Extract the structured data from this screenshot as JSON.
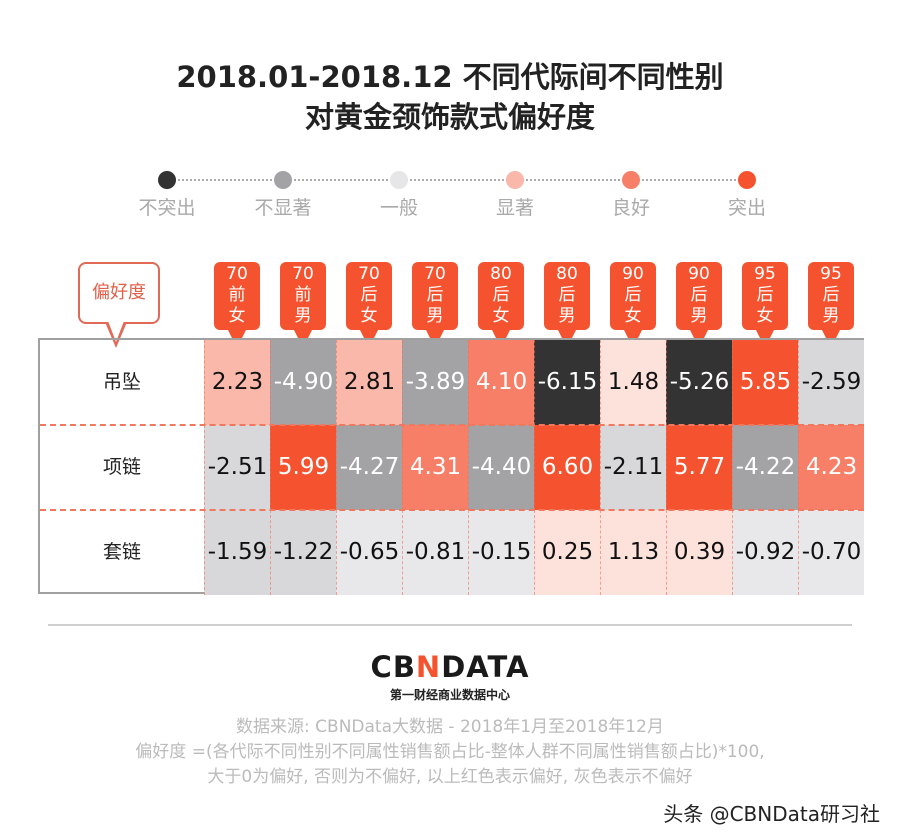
{
  "title_line1": "2018.01-2018.12 不同代际间不同性别",
  "title_line2": "对黄金颈饰款式偏好度",
  "legend": [
    {
      "label": "不突出",
      "color": "#333333"
    },
    {
      "label": "不显著",
      "color": "#a3a3a5"
    },
    {
      "label": "一般",
      "color": "#e6e6e8"
    },
    {
      "label": "显著",
      "color": "#f9b8aa"
    },
    {
      "label": "良好",
      "color": "#f77f68"
    },
    {
      "label": "突出",
      "color": "#f5532f"
    }
  ],
  "chart_data": {
    "type": "heatmap",
    "corner_label": "偏好度",
    "columns": [
      [
        "70",
        "前",
        "女"
      ],
      [
        "70",
        "前",
        "男"
      ],
      [
        "70",
        "后",
        "女"
      ],
      [
        "70",
        "后",
        "男"
      ],
      [
        "80",
        "后",
        "女"
      ],
      [
        "80",
        "后",
        "男"
      ],
      [
        "90",
        "后",
        "女"
      ],
      [
        "90",
        "后",
        "男"
      ],
      [
        "95",
        "后",
        "女"
      ],
      [
        "95",
        "后",
        "男"
      ]
    ],
    "rows": [
      {
        "label": "吊坠",
        "values": [
          "2.23",
          "-4.90",
          "2.81",
          "-3.89",
          "4.10",
          "-6.15",
          "1.48",
          "-5.26",
          "5.85",
          "-2.59"
        ]
      },
      {
        "label": "项链",
        "values": [
          "-2.51",
          "5.99",
          "-4.27",
          "4.31",
          "-4.40",
          "6.60",
          "-2.11",
          "5.77",
          "-4.22",
          "4.23"
        ]
      },
      {
        "label": "套链",
        "values": [
          "-1.59",
          "-1.22",
          "-0.65",
          "-0.81",
          "-0.15",
          "0.25",
          "1.13",
          "0.39",
          "-0.92",
          "-0.70"
        ]
      }
    ]
  },
  "footer": {
    "logo_pre": "CB",
    "logo_n": "N",
    "logo_post": "DATA",
    "logo_sub": "第一财经商业数据中心",
    "source": "数据来源: CBNData大数据 - 2018年1月至2018年12月",
    "formula": "偏好度 =(各代际不同性别不同属性销售额占比-整体人群不同属性销售额占比)*100,",
    "explain": "大于0为偏好, 否则为不偏好, 以上红色表示偏好, 灰色表示不偏好",
    "watermark": "头条 @CBNData研习社"
  }
}
